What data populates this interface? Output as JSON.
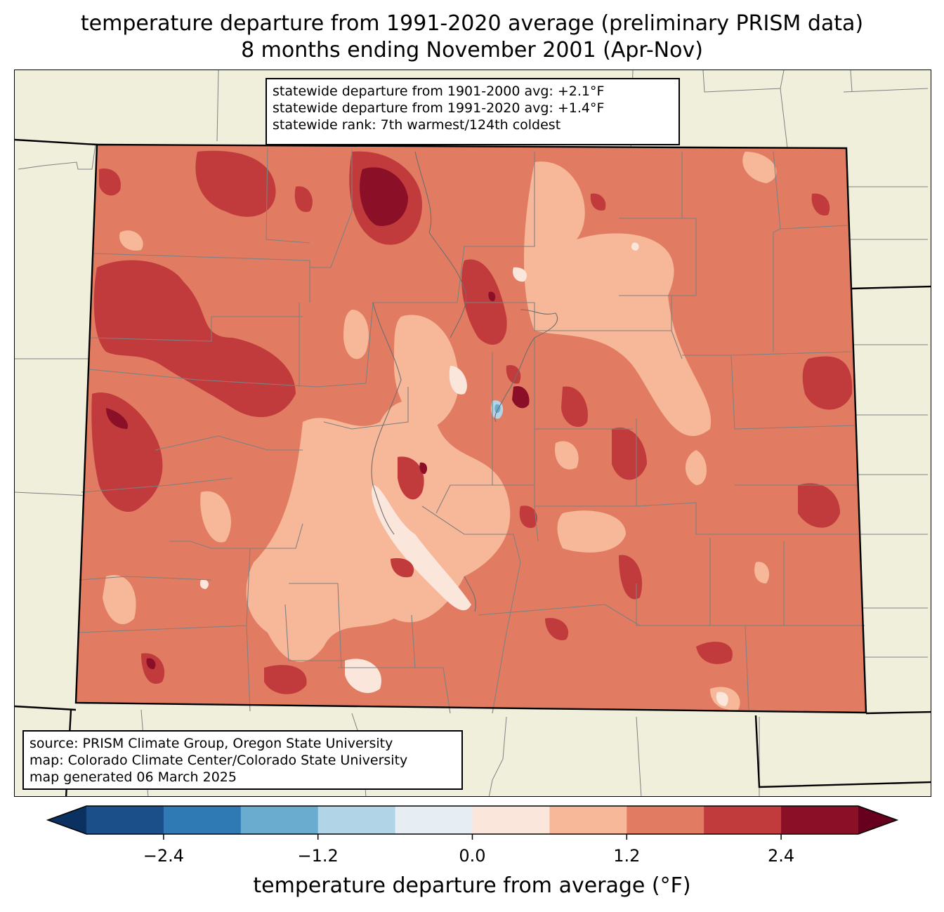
{
  "title": {
    "line1": "temperature departure from 1991-2020 average (preliminary PRISM data)",
    "line2": "8 months ending November 2001 (Apr-Nov)"
  },
  "stats": {
    "line1": "statewide departure from 1901-2000 avg: +2.1°F",
    "line2": "statewide departure from 1991-2020 avg: +1.4°F",
    "line3": "statewide rank: 7th warmest/124th coldest"
  },
  "source": {
    "line1": "source: PRISM Climate Group, Oregon State University",
    "line2": "map: Colorado Climate Center/Colorado State University",
    "line3": "map generated 06 March 2025"
  },
  "colorbar": {
    "label": "temperature departure from average (°F)",
    "ticks": [
      "−2.4",
      "−1.2",
      "0.0",
      "1.2",
      "2.4"
    ],
    "bins": [
      -3.0,
      -2.4,
      -1.8,
      -1.2,
      -0.6,
      0.0,
      0.6,
      1.2,
      1.8,
      2.4,
      3.0
    ],
    "colors": [
      "#1b4f8a",
      "#2f79b5",
      "#6aacd0",
      "#b2d4e7",
      "#e6eef4",
      "#fbe6dc",
      "#f7b799",
      "#e17c62",
      "#c13b3d",
      "#8a0f27"
    ],
    "under_color": "#0b3160",
    "over_color": "#67001f"
  },
  "map_colors": {
    "land": "#f0efdb",
    "base_fill": "#e17c62",
    "county_line": "#808080",
    "state_line": "#000000"
  }
}
